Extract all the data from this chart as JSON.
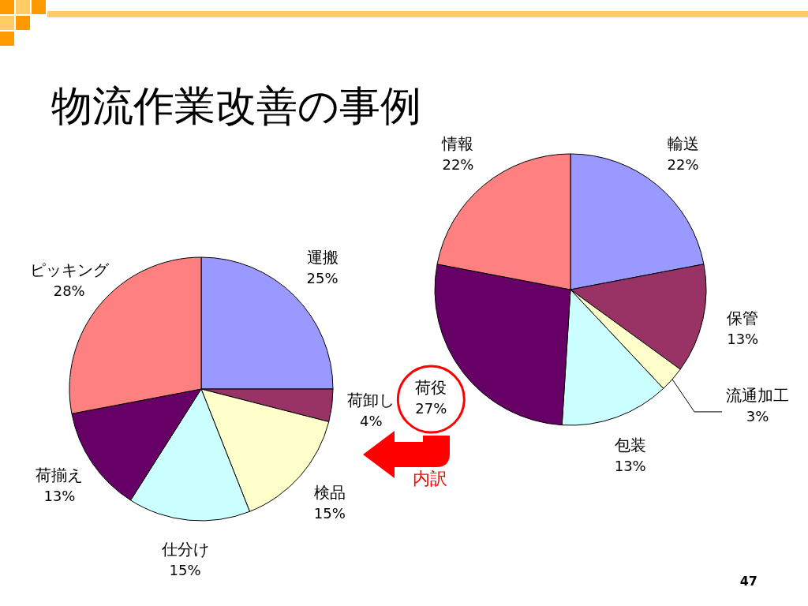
{
  "chart_data": [
    {
      "type": "pie",
      "title": "物流作業改善の事例",
      "categories": [
        "運搬",
        "荷卸し",
        "検品",
        "仕分け",
        "荷揃え",
        "ピッキング"
      ],
      "values": [
        25,
        4,
        15,
        15,
        13,
        28
      ],
      "value_labels": [
        "25%",
        "4%",
        "15%",
        "15%",
        "13%",
        "28%"
      ],
      "colors": [
        "#9999ff",
        "#993366",
        "#ffffcc",
        "#ccffff",
        "#660066",
        "#ff8080"
      ],
      "annotations": [
        "47"
      ]
    },
    {
      "type": "pie",
      "categories": [
        "輸送",
        "保管",
        "流通加工",
        "包装",
        "荷役",
        "情報"
      ],
      "values": [
        22,
        13,
        3,
        13,
        27,
        22
      ],
      "value_labels": [
        "22%",
        "13%",
        "3%",
        "13%",
        "27%",
        "22%"
      ],
      "colors": [
        "#9999ff",
        "#993366",
        "#ffffcc",
        "#ccffff",
        "#660066",
        "#ff8080"
      ],
      "annotations": [
        "内訳"
      ]
    }
  ]
}
